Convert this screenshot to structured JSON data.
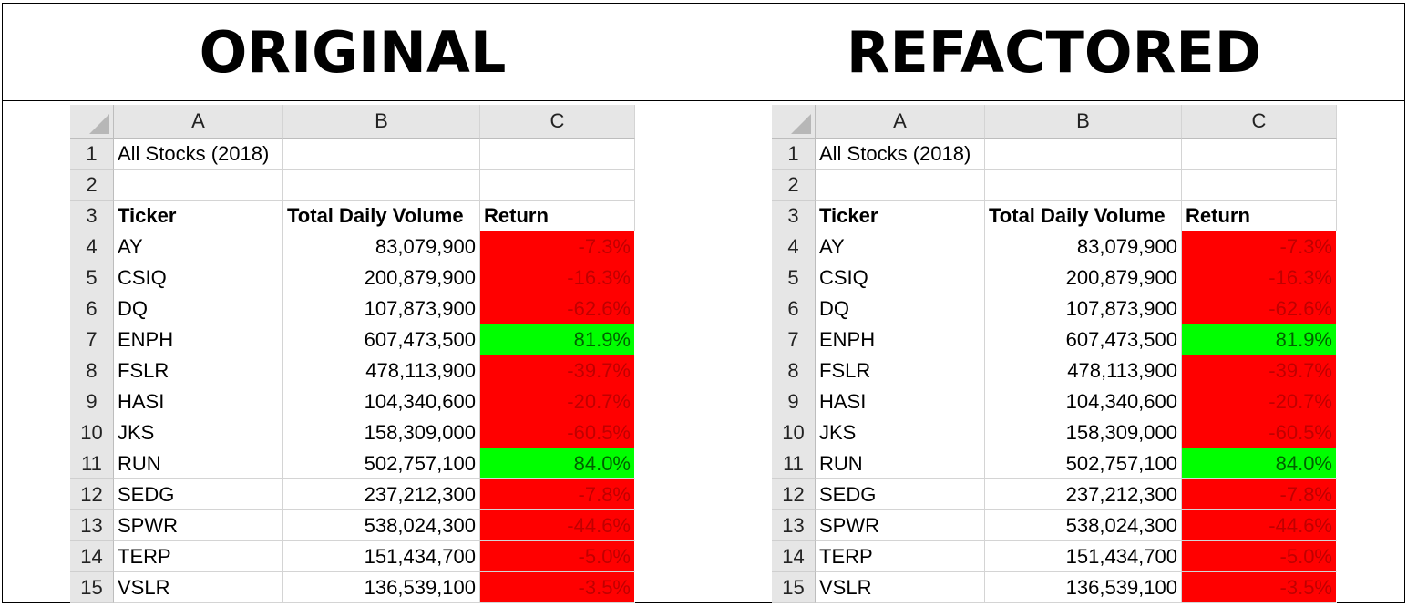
{
  "titles": {
    "left": "ORIGINAL",
    "right": "REFACTORED"
  },
  "columns": [
    "A",
    "B",
    "C"
  ],
  "row_numbers": [
    "1",
    "2",
    "3",
    "4",
    "5",
    "6",
    "7",
    "8",
    "9",
    "10",
    "11",
    "12",
    "13",
    "14",
    "15"
  ],
  "sheet_title": "All Stocks (2018)",
  "headers": {
    "ticker": "Ticker",
    "volume": "Total Daily Volume",
    "return": "Return"
  },
  "rows": [
    {
      "ticker": "AY",
      "volume": "83,079,900",
      "ret": "-7.3%",
      "sign": "neg"
    },
    {
      "ticker": "CSIQ",
      "volume": "200,879,900",
      "ret": "-16.3%",
      "sign": "neg"
    },
    {
      "ticker": "DQ",
      "volume": "107,873,900",
      "ret": "-62.6%",
      "sign": "neg"
    },
    {
      "ticker": "ENPH",
      "volume": "607,473,500",
      "ret": "81.9%",
      "sign": "pos"
    },
    {
      "ticker": "FSLR",
      "volume": "478,113,900",
      "ret": "-39.7%",
      "sign": "neg"
    },
    {
      "ticker": "HASI",
      "volume": "104,340,600",
      "ret": "-20.7%",
      "sign": "neg"
    },
    {
      "ticker": "JKS",
      "volume": "158,309,000",
      "ret": "-60.5%",
      "sign": "neg"
    },
    {
      "ticker": "RUN",
      "volume": "502,757,100",
      "ret": "84.0%",
      "sign": "pos"
    },
    {
      "ticker": "SEDG",
      "volume": "237,212,300",
      "ret": "-7.8%",
      "sign": "neg"
    },
    {
      "ticker": "SPWR",
      "volume": "538,024,300",
      "ret": "-44.6%",
      "sign": "neg"
    },
    {
      "ticker": "TERP",
      "volume": "151,434,700",
      "ret": "-5.0%",
      "sign": "neg"
    },
    {
      "ticker": "VSLR",
      "volume": "136,539,100",
      "ret": "-3.5%",
      "sign": "neg"
    }
  ],
  "colors": {
    "negative_fill": "#ff0000",
    "positive_fill": "#00ff00",
    "header_gray": "#e6e6e6"
  }
}
